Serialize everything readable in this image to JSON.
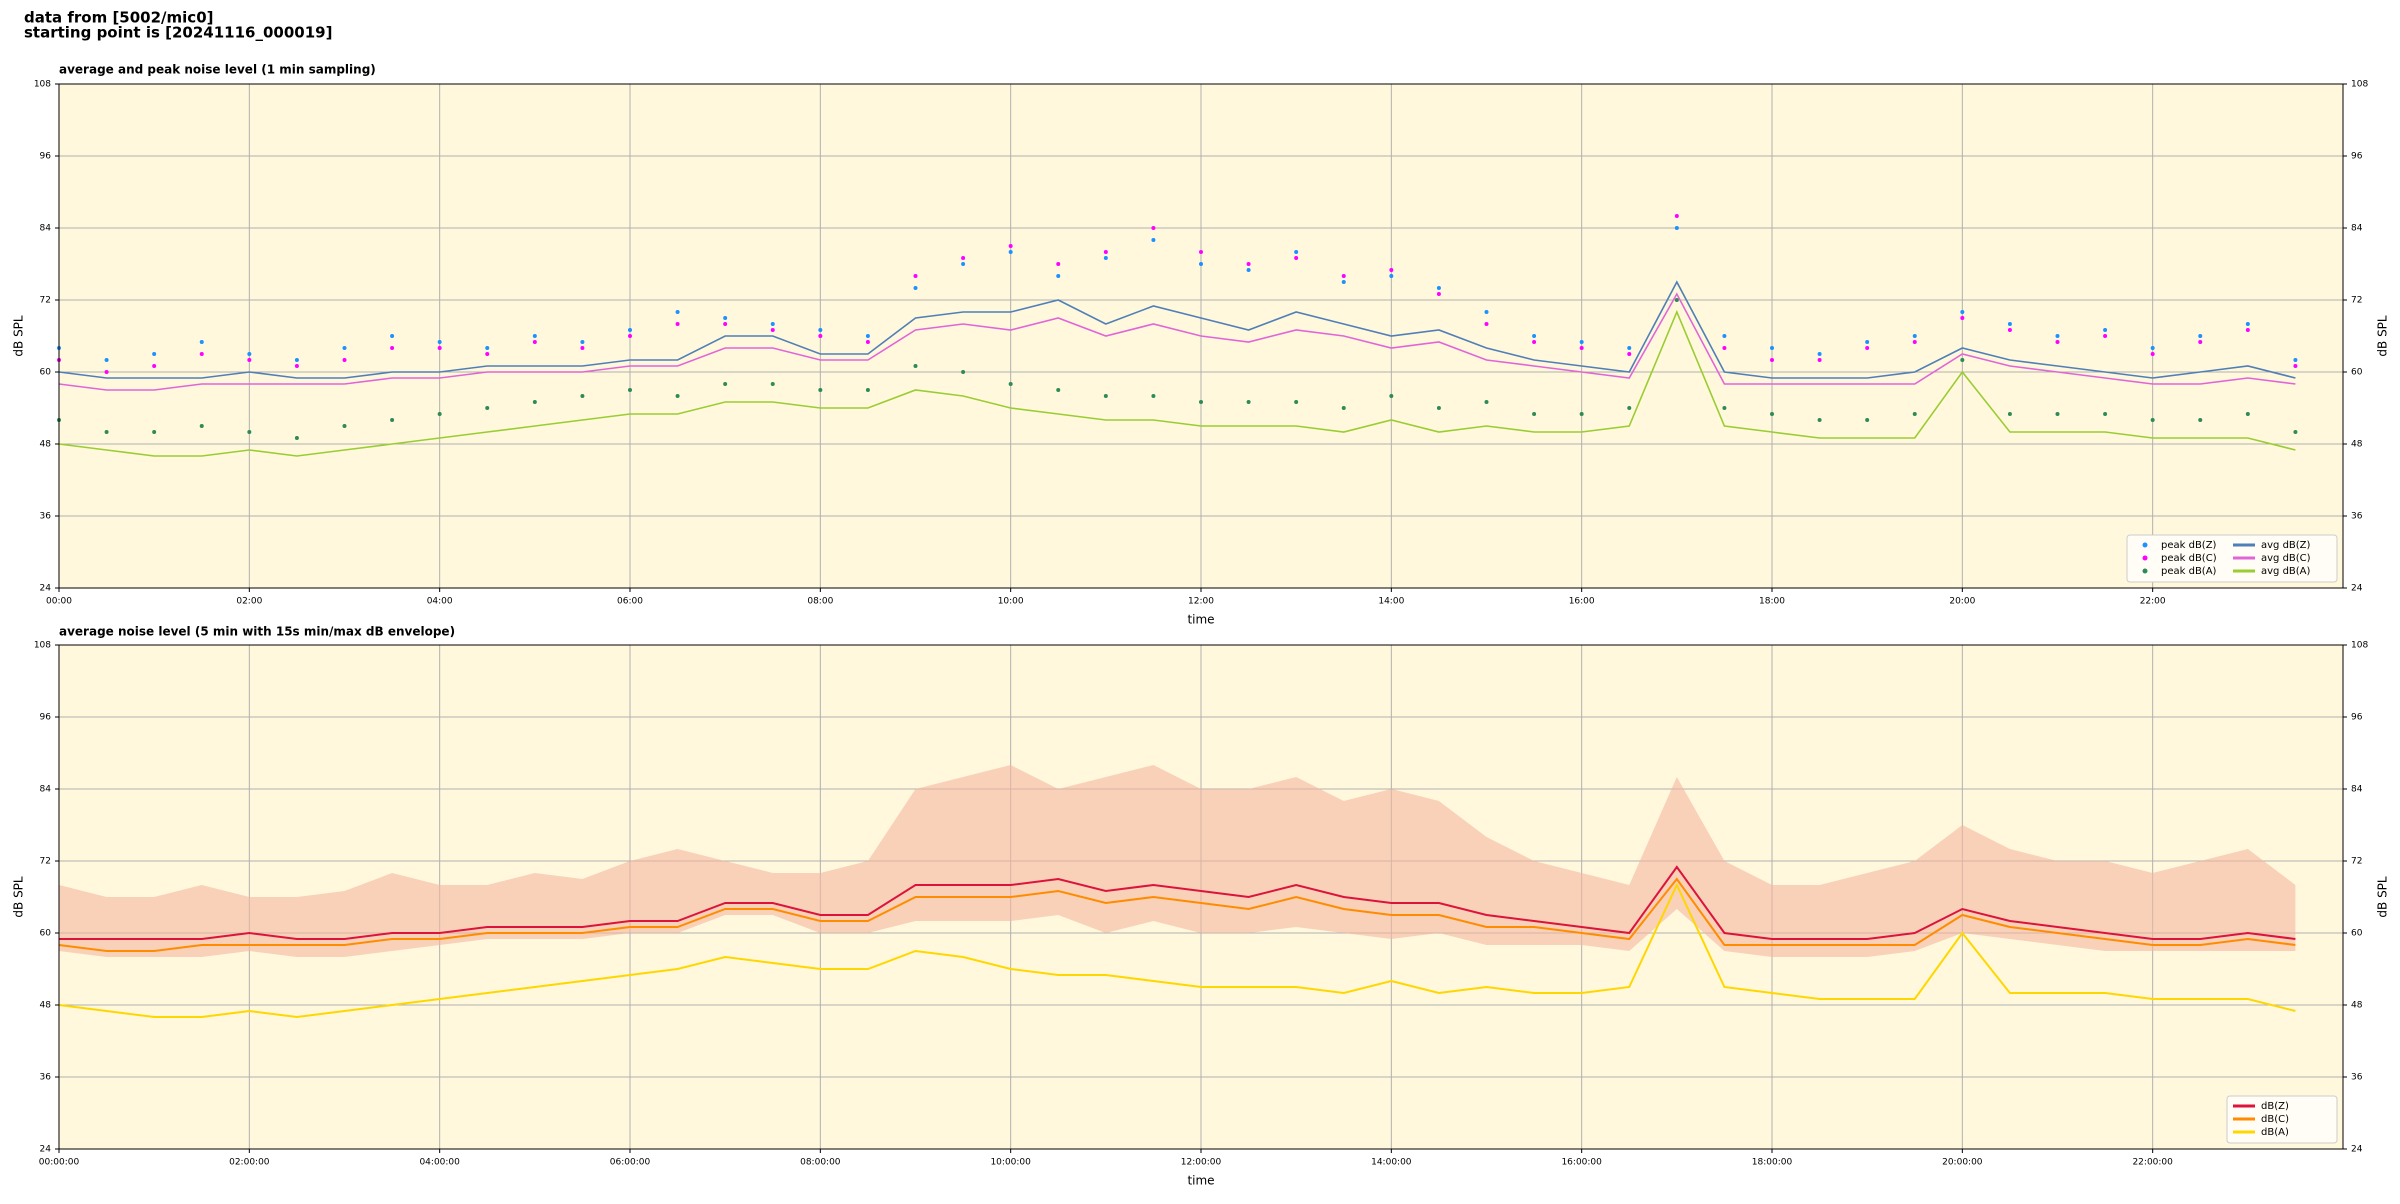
{
  "header": {
    "lines": [
      "data from [5002/mic0]",
      "starting point is [20241116_000019]"
    ]
  },
  "chart_data": [
    {
      "type": "line",
      "title": "average and peak noise level (1 min sampling)",
      "xlabel": "time",
      "ylabel": "dB SPL",
      "x": [
        0,
        0.5,
        1,
        1.5,
        2,
        2.5,
        3,
        3.5,
        4,
        4.5,
        5,
        5.5,
        6,
        6.5,
        7,
        7.5,
        8,
        8.5,
        9,
        9.5,
        10,
        10.5,
        11,
        11.5,
        12,
        12.5,
        13,
        13.5,
        14,
        14.5,
        15,
        15.5,
        16,
        16.5,
        17,
        17.5,
        18,
        18.5,
        19,
        19.5,
        20,
        20.5,
        21,
        21.5,
        22,
        22.5,
        23,
        23.5
      ],
      "xlim": [
        0,
        24
      ],
      "xticks": [
        {
          "value": 0,
          "label": "00:00"
        },
        {
          "value": 2,
          "label": "02:00"
        },
        {
          "value": 4,
          "label": "04:00"
        },
        {
          "value": 6,
          "label": "06:00"
        },
        {
          "value": 8,
          "label": "08:00"
        },
        {
          "value": 10,
          "label": "10:00"
        },
        {
          "value": 12,
          "label": "12:00"
        },
        {
          "value": 14,
          "label": "14:00"
        },
        {
          "value": 16,
          "label": "16:00"
        },
        {
          "value": 18,
          "label": "18:00"
        },
        {
          "value": 20,
          "label": "20:00"
        },
        {
          "value": 22,
          "label": "22:00"
        }
      ],
      "ylim": [
        24,
        108
      ],
      "yticks": [
        24,
        36,
        48,
        60,
        72,
        84,
        96,
        108
      ],
      "grid": true,
      "legend": "lower right",
      "legend_columns": 2,
      "series": [
        {
          "name": "peak dB(Z)",
          "type": "scatter",
          "color": "#1e90ff",
          "values": [
            64,
            62,
            63,
            65,
            63,
            62,
            64,
            66,
            65,
            64,
            66,
            65,
            67,
            70,
            69,
            68,
            67,
            66,
            74,
            78,
            80,
            76,
            79,
            82,
            78,
            77,
            80,
            75,
            76,
            74,
            70,
            66,
            65,
            64,
            84,
            66,
            64,
            63,
            65,
            66,
            70,
            68,
            66,
            67,
            64,
            66,
            68,
            62
          ]
        },
        {
          "name": "peak dB(C)",
          "type": "scatter",
          "color": "#ff00ff",
          "values": [
            62,
            60,
            61,
            63,
            62,
            61,
            62,
            64,
            64,
            63,
            65,
            64,
            66,
            68,
            68,
            67,
            66,
            65,
            76,
            79,
            81,
            78,
            80,
            84,
            80,
            78,
            79,
            76,
            77,
            73,
            68,
            65,
            64,
            63,
            86,
            64,
            62,
            62,
            64,
            65,
            69,
            67,
            65,
            66,
            63,
            65,
            67,
            61
          ]
        },
        {
          "name": "peak dB(A)",
          "type": "scatter",
          "color": "#2e8b57",
          "values": [
            52,
            50,
            50,
            51,
            50,
            49,
            51,
            52,
            53,
            54,
            55,
            56,
            57,
            56,
            58,
            58,
            57,
            57,
            61,
            60,
            58,
            57,
            56,
            56,
            55,
            55,
            55,
            54,
            56,
            54,
            55,
            53,
            53,
            54,
            72,
            54,
            53,
            52,
            52,
            53,
            62,
            53,
            53,
            53,
            52,
            52,
            53,
            50
          ]
        },
        {
          "name": "avg dB(Z)",
          "type": "line",
          "color": "#4f7fb8",
          "values": [
            60,
            59,
            59,
            59,
            60,
            59,
            59,
            60,
            60,
            61,
            61,
            61,
            62,
            62,
            66,
            66,
            63,
            63,
            69,
            70,
            70,
            72,
            68,
            71,
            69,
            67,
            70,
            68,
            66,
            67,
            64,
            62,
            61,
            60,
            75,
            60,
            59,
            59,
            59,
            60,
            64,
            62,
            61,
            60,
            59,
            60,
            61,
            59
          ]
        },
        {
          "name": "avg dB(C)",
          "type": "line",
          "color": "#e066d8",
          "values": [
            58,
            57,
            57,
            58,
            58,
            58,
            58,
            59,
            59,
            60,
            60,
            60,
            61,
            61,
            64,
            64,
            62,
            62,
            67,
            68,
            67,
            69,
            66,
            68,
            66,
            65,
            67,
            66,
            64,
            65,
            62,
            61,
            60,
            59,
            73,
            58,
            58,
            58,
            58,
            58,
            63,
            61,
            60,
            59,
            58,
            58,
            59,
            58
          ]
        },
        {
          "name": "avg dB(A)",
          "type": "line",
          "color": "#9acd32",
          "values": [
            48,
            47,
            46,
            46,
            47,
            46,
            47,
            48,
            49,
            50,
            51,
            52,
            53,
            53,
            55,
            55,
            54,
            54,
            57,
            56,
            54,
            53,
            52,
            52,
            51,
            51,
            51,
            50,
            52,
            50,
            51,
            50,
            50,
            51,
            70,
            51,
            50,
            49,
            49,
            49,
            60,
            50,
            50,
            50,
            49,
            49,
            49,
            47
          ]
        }
      ]
    },
    {
      "type": "line",
      "title": "average noise level (5 min with 15s min/max dB envelope)",
      "xlabel": "time",
      "ylabel": "dB SPL",
      "x": [
        0,
        0.5,
        1,
        1.5,
        2,
        2.5,
        3,
        3.5,
        4,
        4.5,
        5,
        5.5,
        6,
        6.5,
        7,
        7.5,
        8,
        8.5,
        9,
        9.5,
        10,
        10.5,
        11,
        11.5,
        12,
        12.5,
        13,
        13.5,
        14,
        14.5,
        15,
        15.5,
        16,
        16.5,
        17,
        17.5,
        18,
        18.5,
        19,
        19.5,
        20,
        20.5,
        21,
        21.5,
        22,
        22.5,
        23,
        23.5
      ],
      "xlim": [
        0,
        24
      ],
      "xticks": [
        {
          "value": 0,
          "label": "00:00:00"
        },
        {
          "value": 2,
          "label": "02:00:00"
        },
        {
          "value": 4,
          "label": "04:00:00"
        },
        {
          "value": 6,
          "label": "06:00:00"
        },
        {
          "value": 8,
          "label": "08:00:00"
        },
        {
          "value": 10,
          "label": "10:00:00"
        },
        {
          "value": 12,
          "label": "12:00:00"
        },
        {
          "value": 14,
          "label": "14:00:00"
        },
        {
          "value": 16,
          "label": "16:00:00"
        },
        {
          "value": 18,
          "label": "18:00:00"
        },
        {
          "value": 20,
          "label": "20:00:00"
        },
        {
          "value": 22,
          "label": "22:00:00"
        }
      ],
      "ylim": [
        24,
        108
      ],
      "yticks": [
        24,
        36,
        48,
        60,
        72,
        84,
        96,
        108
      ],
      "grid": true,
      "legend": "lower right",
      "legend_columns": 1,
      "envelope": {
        "color": "#f4b8a0",
        "upper": [
          68,
          66,
          66,
          68,
          66,
          66,
          67,
          70,
          68,
          68,
          70,
          69,
          72,
          74,
          72,
          70,
          70,
          72,
          84,
          86,
          88,
          84,
          86,
          88,
          84,
          84,
          86,
          82,
          84,
          82,
          76,
          72,
          70,
          68,
          86,
          72,
          68,
          68,
          70,
          72,
          78,
          74,
          72,
          72,
          70,
          72,
          74,
          68
        ],
        "lower": [
          57,
          56,
          56,
          56,
          57,
          56,
          56,
          57,
          58,
          59,
          59,
          59,
          60,
          60,
          63,
          63,
          60,
          60,
          62,
          62,
          62,
          63,
          60,
          62,
          60,
          60,
          61,
          60,
          59,
          60,
          58,
          58,
          58,
          57,
          64,
          57,
          56,
          56,
          56,
          57,
          60,
          59,
          58,
          57,
          57,
          57,
          57,
          57
        ]
      },
      "series": [
        {
          "name": "dB(Z)",
          "type": "line",
          "color": "#dc143c",
          "values": [
            59,
            59,
            59,
            59,
            60,
            59,
            59,
            60,
            60,
            61,
            61,
            61,
            62,
            62,
            65,
            65,
            63,
            63,
            68,
            68,
            68,
            69,
            67,
            68,
            67,
            66,
            68,
            66,
            65,
            65,
            63,
            62,
            61,
            60,
            71,
            60,
            59,
            59,
            59,
            60,
            64,
            62,
            61,
            60,
            59,
            59,
            60,
            59
          ]
        },
        {
          "name": "dB(C)",
          "type": "line",
          "color": "#ff8c00",
          "values": [
            58,
            57,
            57,
            58,
            58,
            58,
            58,
            59,
            59,
            60,
            60,
            60,
            61,
            61,
            64,
            64,
            62,
            62,
            66,
            66,
            66,
            67,
            65,
            66,
            65,
            64,
            66,
            64,
            63,
            63,
            61,
            61,
            60,
            59,
            69,
            58,
            58,
            58,
            58,
            58,
            63,
            61,
            60,
            59,
            58,
            58,
            59,
            58
          ]
        },
        {
          "name": "dB(A)",
          "type": "line",
          "color": "#ffd700",
          "values": [
            48,
            47,
            46,
            46,
            47,
            46,
            47,
            48,
            49,
            50,
            51,
            52,
            53,
            54,
            56,
            55,
            54,
            54,
            57,
            56,
            54,
            53,
            53,
            52,
            51,
            51,
            51,
            50,
            52,
            50,
            51,
            50,
            50,
            51,
            68,
            51,
            50,
            49,
            49,
            49,
            60,
            50,
            50,
            50,
            49,
            49,
            49,
            47
          ]
        }
      ]
    }
  ]
}
